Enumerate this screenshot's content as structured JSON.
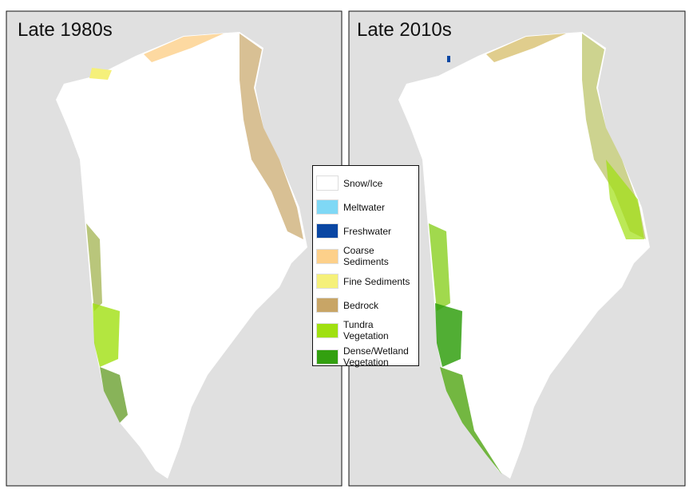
{
  "panels": [
    {
      "title": "Late 1980s"
    },
    {
      "title": "Late 2010s"
    }
  ],
  "legend": {
    "items": [
      {
        "label": "Snow/Ice",
        "color": "#ffffff"
      },
      {
        "label": "Meltwater",
        "color": "#7fd8f5"
      },
      {
        "label": "Freshwater",
        "color": "#0a47a3"
      },
      {
        "label": "Coarse Sediments",
        "color": "#fdd08a"
      },
      {
        "label": "Fine Sediments",
        "color": "#f5f07a"
      },
      {
        "label": "Bedrock",
        "color": "#c8a566"
      },
      {
        "label": "Tundra Vegetation",
        "color": "#a0e010"
      },
      {
        "label": "Dense/Wetland Vegetation",
        "color": "#33a010"
      }
    ]
  }
}
